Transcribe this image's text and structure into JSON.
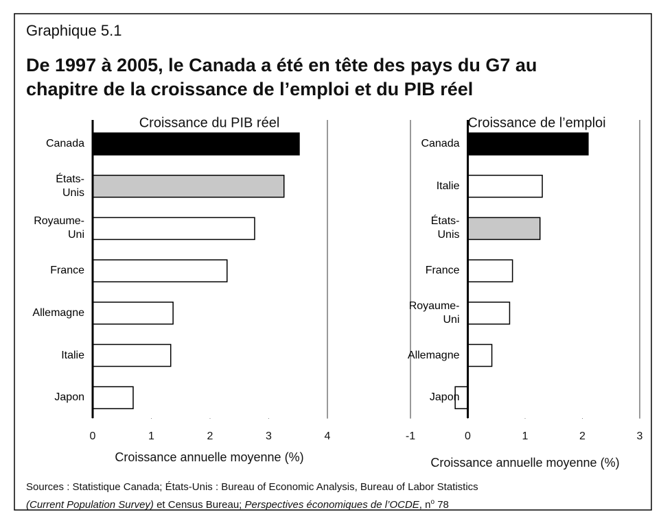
{
  "title_label": "Graphique 5.1",
  "title": "De 1997 à 2005, le Canada a été en tête des pays du G7 au chapitre de la croissance de l’emploi et du PIB réel",
  "chart_data": [
    {
      "type": "bar",
      "orientation": "horizontal",
      "subtitle": "Croissance du PIB réel",
      "x_label": "Croissance annuelle moyenne (%)",
      "categories": [
        "Canada",
        "États-\nUnis",
        "Royaume-\nUni",
        "France",
        "Allemagne",
        "Italie",
        "Japon"
      ],
      "values": [
        3.52,
        3.26,
        2.76,
        2.29,
        1.37,
        1.33,
        0.69
      ],
      "colors": [
        "#000000",
        "#c8c8c8",
        "#ffffff",
        "#ffffff",
        "#ffffff",
        "#ffffff",
        "#ffffff"
      ],
      "xlim": [
        0,
        4
      ],
      "xticks": [
        0,
        1,
        2,
        3,
        4
      ]
    },
    {
      "type": "bar",
      "orientation": "horizontal",
      "subtitle": "Croissance de l’emploi",
      "x_label": "Croissance annuelle moyenne (%)",
      "categories": [
        "Canada",
        "Italie",
        "États-\nUnis",
        "France",
        "Royaume-\nUni",
        "Allemagne",
        "Japon"
      ],
      "values": [
        2.1,
        1.3,
        1.26,
        0.78,
        0.73,
        0.42,
        -0.22
      ],
      "colors": [
        "#000000",
        "#ffffff",
        "#c8c8c8",
        "#ffffff",
        "#ffffff",
        "#ffffff",
        "#ffffff"
      ],
      "xlim": [
        -1,
        3
      ],
      "xticks": [
        -1,
        0,
        1,
        2,
        3
      ]
    }
  ],
  "sources": {
    "line1": "Sources : Statistique Canada; États-Unis : Bureau of Economic Analysis, Bureau of Labor Statistics",
    "line2": [
      "(Current Population Survey)",
      " et Census Bureau; ",
      "Perspectives économiques de l’OCDE",
      ", n",
      "o",
      " 78"
    ]
  }
}
